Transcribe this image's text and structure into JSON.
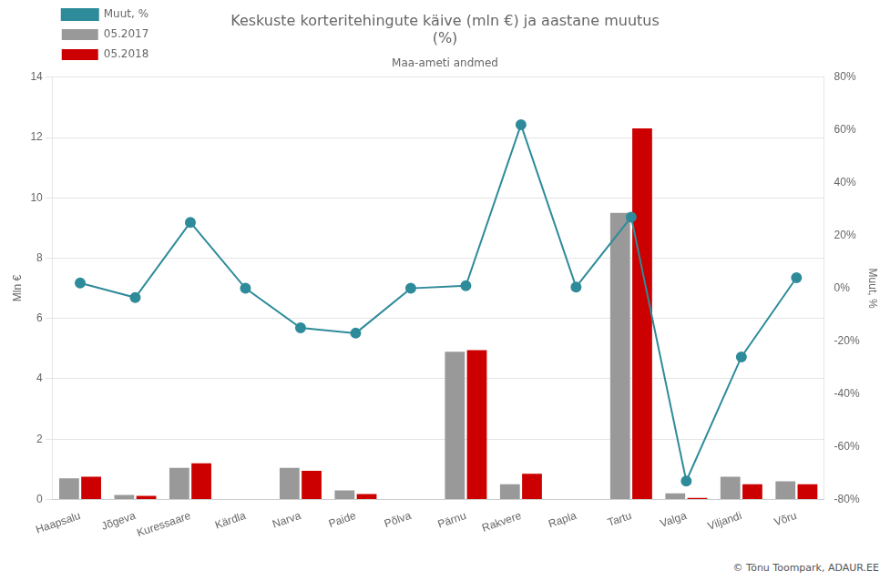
{
  "chart_data": {
    "type": "bar",
    "title": [
      "Keskuste korteritehingute käive (mln €) ja aastane muutus",
      "(%)"
    ],
    "subtitle": "Maa-ameti andmed",
    "ylabel": "Mln €",
    "y2label": "Muut, %",
    "categories": [
      "Haapsalu",
      "Jõgeva",
      "Kuressaare",
      "Kärdla",
      "Narva",
      "Paide",
      "Põlva",
      "Pärnu",
      "Rakvere",
      "Rapla",
      "Tartu",
      "Valga",
      "Viljandi",
      "Võru"
    ],
    "series": [
      {
        "name": "05.2017",
        "color": "#999999",
        "values": [
          0.7,
          0.15,
          1.05,
          0.0,
          1.05,
          0.3,
          0.0,
          4.9,
          0.5,
          0.0,
          9.5,
          0.2,
          0.75,
          0.6
        ]
      },
      {
        "name": "05.2018",
        "color": "#cc0000",
        "values": [
          0.75,
          0.12,
          1.2,
          0.0,
          0.95,
          0.18,
          0.0,
          4.95,
          0.85,
          0.0,
          12.3,
          0.05,
          0.5,
          0.5
        ]
      },
      {
        "name": "Muut, %",
        "type": "line",
        "axis": "y2",
        "color": "#2e8b9a",
        "marker": "o",
        "values": [
          2.0,
          -3.5,
          25.0,
          0.0,
          -15.0,
          -17.0,
          0.0,
          1.0,
          62.0,
          0.5,
          27.0,
          -73.0,
          -26.0,
          4.0
        ]
      }
    ],
    "ylim": [
      0,
      14
    ],
    "yticks": [
      0,
      2,
      4,
      6,
      8,
      10,
      12,
      14
    ],
    "y2lim": [
      -80,
      80
    ],
    "y2ticks": [
      {
        "value": -80,
        "label": "-80%"
      },
      {
        "value": -60,
        "label": "-60%"
      },
      {
        "value": -40,
        "label": "-40%"
      },
      {
        "value": -20,
        "label": "-20%"
      },
      {
        "value": 0,
        "label": "0%"
      },
      {
        "value": 20,
        "label": "20%"
      },
      {
        "value": 40,
        "label": "40%"
      },
      {
        "value": 60,
        "label": "60%"
      },
      {
        "value": 80,
        "label": "80%"
      }
    ],
    "grid": true,
    "legend": "upper left",
    "annotations": [
      "© Tõnu Toompark, ADAUR.EE"
    ]
  }
}
